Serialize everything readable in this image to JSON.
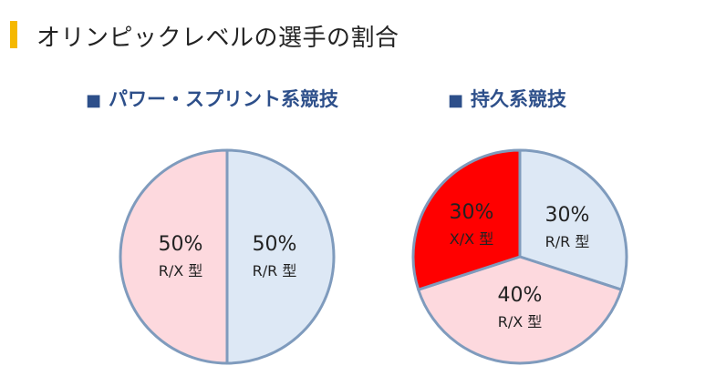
{
  "page": {
    "title": "オリンピックレベルの選手の割合",
    "accent_color": "#f5b800"
  },
  "chart_data": [
    {
      "type": "pie",
      "title": "パワー・スプリント系競技",
      "title_marker": "■",
      "slices": [
        {
          "pct_label": "50%",
          "type_label": "R/R 型",
          "value": 50,
          "color": "#dde8f5"
        },
        {
          "pct_label": "50%",
          "type_label": "R/X 型",
          "value": 50,
          "color": "#fdd9de"
        }
      ]
    },
    {
      "type": "pie",
      "title": "持久系競技",
      "title_marker": "■",
      "slices": [
        {
          "pct_label": "30%",
          "type_label": "R/R 型",
          "value": 30,
          "color": "#dde8f5"
        },
        {
          "pct_label": "40%",
          "type_label": "R/X 型",
          "value": 40,
          "color": "#fdd9de"
        },
        {
          "pct_label": "30%",
          "type_label": "X/X 型",
          "value": 30,
          "color": "#ff0000"
        }
      ]
    }
  ]
}
